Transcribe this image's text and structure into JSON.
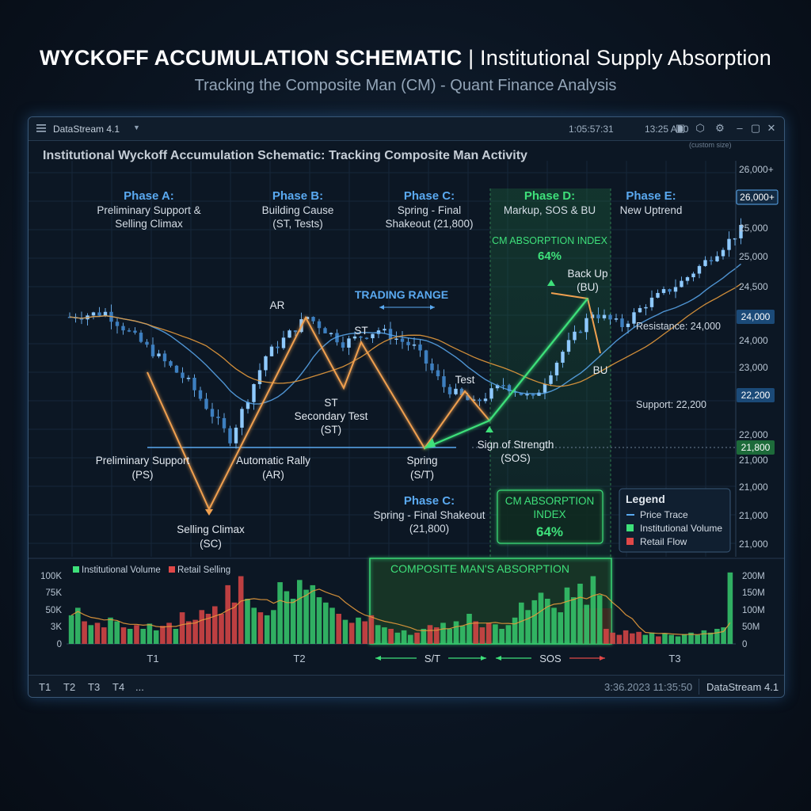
{
  "header": {
    "title_bold": "WYCKOFF ACCUMULATION SCHEMATIC",
    "title_rest": " | Institutional Supply Absorption",
    "subtitle": "Tracking the Composite Man (CM) - Quant Finance Analysis"
  },
  "window": {
    "app_name": "DataStream 4.1",
    "clock_left": "1:05:57:31",
    "clock_right": "13:25 AB0",
    "chart_title": "Institutional Wyckoff Accumulation Schematic: Tracking Composite Man Activity",
    "custom_size": "(custom size)",
    "icons": [
      "window-icon",
      "settings-cube-icon",
      "gear-icon",
      "minimize-icon",
      "maximize-icon",
      "close-icon"
    ]
  },
  "phases": [
    {
      "name": "Phase A:",
      "desc1": "Preliminary Support &",
      "desc2": "Selling Climax",
      "color": "#5aa9f0"
    },
    {
      "name": "Phase B:",
      "desc1": "Building Cause",
      "desc2": "(ST, Tests)",
      "color": "#5aa9f0"
    },
    {
      "name": "Phase C:",
      "desc1": "Spring - Final",
      "desc2": "Shakeout (21,800)",
      "color": "#5aa9f0"
    },
    {
      "name": "Phase D:",
      "desc1": "Markup, SOS & BU",
      "desc2": "",
      "color": "#3ee07a"
    },
    {
      "name": "Phase E:",
      "desc1": "New Uptrend",
      "desc2": "",
      "color": "#5aa9f0"
    }
  ],
  "annotations": {
    "ar": "AR",
    "st_top": "ST",
    "trading_range": "TRADING RANGE",
    "st_mid": "ST",
    "secondary_test1": "Secondary Test",
    "secondary_test2": "(ST)",
    "test": "Test",
    "ps1": "Preliminary Support",
    "ps2": "(PS)",
    "ar1": "Automatic Rally",
    "ar2": "(AR)",
    "spring1": "Spring",
    "spring2": "(S/T)",
    "sos1": "Sign of Strength",
    "sos2": "(SOS)",
    "sc1": "Selling Climax",
    "sc2": "(SC)",
    "bu_top1": "Back Up",
    "bu_top2": "(BU)",
    "bu": "BU",
    "resistance": "Resistance: 24,000",
    "support": "Support: 22,200",
    "cm_index_top1": "CM ABSORPTION INDEX",
    "cm_index_top2": "64%",
    "phase_c_low_name": "Phase C:",
    "phase_c_low1": "Spring - Final Shakeout",
    "phase_c_low2": "(21,800)",
    "cm_box1": "CM ABSORPTION",
    "cm_box2": "INDEX",
    "cm_box3": "64%"
  },
  "legend": {
    "title": "Legend",
    "items": [
      {
        "label": "Price Trace",
        "color": "#5aa9f0"
      },
      {
        "label": "Institutional Volume",
        "color": "#3ee07a"
      },
      {
        "label": "Retail Flow",
        "color": "#e04848"
      }
    ]
  },
  "price_axis": {
    "ticks": [
      "26,000+",
      "25,000",
      "25,000",
      "24,500",
      "24,000",
      "23,000",
      "22,000",
      "21,000",
      "21,000",
      "21,000",
      "21,000"
    ],
    "badges": [
      {
        "label": "26,000+",
        "color": "#5aa9f0"
      },
      {
        "label": "24,000",
        "color": "#5aa9f0"
      },
      {
        "label": "22,200",
        "color": "#5aa9f0"
      },
      {
        "label": "21,800",
        "color": "#3ee07a"
      }
    ]
  },
  "volume": {
    "legend_inst": "Institutional Volume",
    "legend_retail": "Retail Selling",
    "left_ticks": [
      "100K",
      "75K",
      "50K",
      "3K",
      "0"
    ],
    "right_ticks": [
      "200M",
      "150M",
      "100M",
      "50M",
      "0"
    ],
    "absorption_label": "COMPOSITE MAN'S ABSORPTION",
    "x_labels": [
      "T1",
      "T2",
      "S/T",
      "SOS",
      "T3"
    ],
    "bars": [
      {
        "v": 38,
        "c": "g"
      },
      {
        "v": 48,
        "c": "g"
      },
      {
        "v": 30,
        "c": "r"
      },
      {
        "v": 25,
        "c": "g"
      },
      {
        "v": 28,
        "c": "r"
      },
      {
        "v": 22,
        "c": "r"
      },
      {
        "v": 35,
        "c": "g"
      },
      {
        "v": 30,
        "c": "g"
      },
      {
        "v": 22,
        "c": "r"
      },
      {
        "v": 20,
        "c": "g"
      },
      {
        "v": 25,
        "c": "r"
      },
      {
        "v": 20,
        "c": "g"
      },
      {
        "v": 27,
        "c": "g"
      },
      {
        "v": 18,
        "c": "g"
      },
      {
        "v": 24,
        "c": "r"
      },
      {
        "v": 28,
        "c": "r"
      },
      {
        "v": 20,
        "c": "g"
      },
      {
        "v": 42,
        "c": "r"
      },
      {
        "v": 30,
        "c": "r"
      },
      {
        "v": 32,
        "c": "r"
      },
      {
        "v": 45,
        "c": "r"
      },
      {
        "v": 40,
        "c": "r"
      },
      {
        "v": 50,
        "c": "r"
      },
      {
        "v": 40,
        "c": "r"
      },
      {
        "v": 78,
        "c": "r"
      },
      {
        "v": 55,
        "c": "r"
      },
      {
        "v": 90,
        "c": "r"
      },
      {
        "v": 60,
        "c": "g"
      },
      {
        "v": 48,
        "c": "g"
      },
      {
        "v": 42,
        "c": "r"
      },
      {
        "v": 38,
        "c": "g"
      },
      {
        "v": 45,
        "c": "g"
      },
      {
        "v": 82,
        "c": "g"
      },
      {
        "v": 70,
        "c": "g"
      },
      {
        "v": 60,
        "c": "g"
      },
      {
        "v": 85,
        "c": "g"
      },
      {
        "v": 72,
        "c": "g"
      },
      {
        "v": 78,
        "c": "g"
      },
      {
        "v": 62,
        "c": "g"
      },
      {
        "v": 55,
        "c": "g"
      },
      {
        "v": 48,
        "c": "g"
      },
      {
        "v": 40,
        "c": "r"
      },
      {
        "v": 32,
        "c": "g"
      },
      {
        "v": 28,
        "c": "r"
      },
      {
        "v": 35,
        "c": "g"
      },
      {
        "v": 30,
        "c": "r"
      },
      {
        "v": 38,
        "c": "r"
      },
      {
        "v": 25,
        "c": "g"
      },
      {
        "v": 22,
        "c": "g"
      },
      {
        "v": 20,
        "c": "r"
      },
      {
        "v": 15,
        "c": "g"
      },
      {
        "v": 18,
        "c": "g"
      },
      {
        "v": 12,
        "c": "g"
      },
      {
        "v": 15,
        "c": "r"
      },
      {
        "v": 20,
        "c": "g"
      },
      {
        "v": 25,
        "c": "r"
      },
      {
        "v": 22,
        "c": "r"
      },
      {
        "v": 28,
        "c": "g"
      },
      {
        "v": 20,
        "c": "g"
      },
      {
        "v": 30,
        "c": "g"
      },
      {
        "v": 24,
        "c": "g"
      },
      {
        "v": 40,
        "c": "g"
      },
      {
        "v": 30,
        "c": "r"
      },
      {
        "v": 22,
        "c": "r"
      },
      {
        "v": 28,
        "c": "r"
      },
      {
        "v": 26,
        "c": "g"
      },
      {
        "v": 20,
        "c": "g"
      },
      {
        "v": 25,
        "c": "g"
      },
      {
        "v": 35,
        "c": "g"
      },
      {
        "v": 55,
        "c": "g"
      },
      {
        "v": 45,
        "c": "g"
      },
      {
        "v": 58,
        "c": "g"
      },
      {
        "v": 68,
        "c": "g"
      },
      {
        "v": 60,
        "c": "g"
      },
      {
        "v": 48,
        "c": "g"
      },
      {
        "v": 42,
        "c": "g"
      },
      {
        "v": 75,
        "c": "g"
      },
      {
        "v": 62,
        "c": "g"
      },
      {
        "v": 80,
        "c": "g"
      },
      {
        "v": 52,
        "c": "g"
      },
      {
        "v": 90,
        "c": "g"
      },
      {
        "v": 65,
        "c": "g"
      },
      {
        "v": 20,
        "c": "r"
      },
      {
        "v": 15,
        "c": "r"
      },
      {
        "v": 12,
        "c": "r"
      },
      {
        "v": 18,
        "c": "r"
      },
      {
        "v": 14,
        "c": "r"
      },
      {
        "v": 16,
        "c": "r"
      },
      {
        "v": 12,
        "c": "g"
      },
      {
        "v": 15,
        "c": "g"
      },
      {
        "v": 10,
        "c": "r"
      },
      {
        "v": 14,
        "c": "g"
      },
      {
        "v": 12,
        "c": "g"
      },
      {
        "v": 10,
        "c": "g"
      },
      {
        "v": 13,
        "c": "g"
      },
      {
        "v": 15,
        "c": "g"
      },
      {
        "v": 12,
        "c": "g"
      },
      {
        "v": 18,
        "c": "g"
      },
      {
        "v": 15,
        "c": "g"
      },
      {
        "v": 20,
        "c": "g"
      },
      {
        "v": 22,
        "c": "g"
      },
      {
        "v": 95,
        "c": "g"
      }
    ]
  },
  "statusbar": {
    "tabs": [
      "T1",
      "T2",
      "T3",
      "T4",
      "..."
    ],
    "timestamp": "3:36.2023 11:35:50",
    "app_name": "DataStream 4.1"
  },
  "chart_data": {
    "type": "line",
    "resistance": 24000,
    "support": 22200,
    "spring_level": 21800,
    "price_waypoints": [
      {
        "t": 0,
        "p": 24000
      },
      {
        "t": 6,
        "p": 24100
      },
      {
        "t": 13,
        "p": 23300
      },
      {
        "t": 20,
        "p": 22500
      },
      {
        "t": 27,
        "p": 21200
      },
      {
        "t": 33,
        "p": 23100
      },
      {
        "t": 40,
        "p": 24000
      },
      {
        "t": 46,
        "p": 23400
      },
      {
        "t": 52,
        "p": 23700
      },
      {
        "t": 58,
        "p": 23300
      },
      {
        "t": 63,
        "p": 22400
      },
      {
        "t": 68,
        "p": 22000
      },
      {
        "t": 73,
        "p": 22450
      },
      {
        "t": 78,
        "p": 22100
      },
      {
        "t": 83,
        "p": 23200
      },
      {
        "t": 88,
        "p": 24100
      },
      {
        "t": 93,
        "p": 23800
      },
      {
        "t": 97,
        "p": 24300
      },
      {
        "t": 103,
        "p": 24800
      },
      {
        "t": 109,
        "p": 25500
      },
      {
        "t": 113,
        "p": 26000
      }
    ]
  }
}
